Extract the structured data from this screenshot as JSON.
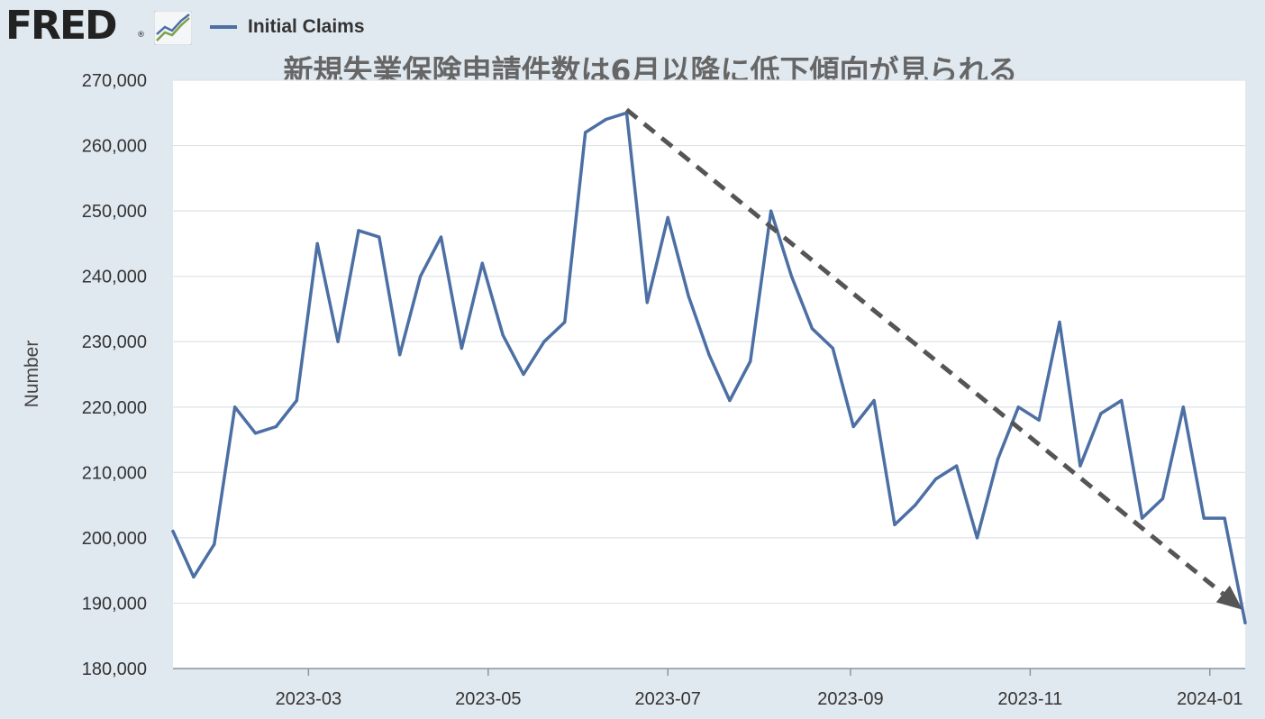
{
  "logo": {
    "text": "FRED",
    "reg": "®",
    "icon": "fred-chart-icon"
  },
  "overlay_title": "新規失業保険申請件数は6月以降に低下傾向が見られる",
  "colors": {
    "series": "#4c6fa4",
    "grid": "#dde3e8",
    "arrow": "#555555",
    "background": "#e1e9f0",
    "plot": "#ffffff"
  },
  "chart_data": {
    "type": "line",
    "title": "",
    "xlabel": "",
    "ylabel": "Number",
    "ylim": [
      180000,
      270000
    ],
    "yticks": [
      180000,
      190000,
      200000,
      210000,
      220000,
      230000,
      240000,
      250000,
      260000,
      270000
    ],
    "ytick_labels": [
      "180,000",
      "190,000",
      "200,000",
      "210,000",
      "220,000",
      "230,000",
      "240,000",
      "250,000",
      "260,000",
      "270,000"
    ],
    "xlim": [
      "2023-01-14",
      "2024-01-13"
    ],
    "xticks": [
      "2023-03-01",
      "2023-05-01",
      "2023-07-01",
      "2023-09-01",
      "2023-11-01",
      "2024-01-01"
    ],
    "xtick_labels": [
      "2023-03",
      "2023-05",
      "2023-07",
      "2023-09",
      "2023-11",
      "2024-01"
    ],
    "grid": true,
    "legend": "top-left",
    "series": [
      {
        "name": "Initial Claims",
        "x": [
          "2023-01-14",
          "2023-01-21",
          "2023-01-28",
          "2023-02-04",
          "2023-02-11",
          "2023-02-18",
          "2023-02-25",
          "2023-03-04",
          "2023-03-11",
          "2023-03-18",
          "2023-03-25",
          "2023-04-01",
          "2023-04-08",
          "2023-04-15",
          "2023-04-22",
          "2023-04-29",
          "2023-05-06",
          "2023-05-13",
          "2023-05-20",
          "2023-05-27",
          "2023-06-03",
          "2023-06-10",
          "2023-06-17",
          "2023-06-24",
          "2023-07-01",
          "2023-07-08",
          "2023-07-15",
          "2023-07-22",
          "2023-07-29",
          "2023-08-05",
          "2023-08-12",
          "2023-08-19",
          "2023-08-26",
          "2023-09-02",
          "2023-09-09",
          "2023-09-16",
          "2023-09-23",
          "2023-09-30",
          "2023-10-07",
          "2023-10-14",
          "2023-10-21",
          "2023-10-28",
          "2023-11-04",
          "2023-11-11",
          "2023-11-18",
          "2023-11-25",
          "2023-12-02",
          "2023-12-09",
          "2023-12-16",
          "2023-12-23",
          "2023-12-30",
          "2024-01-06",
          "2024-01-13"
        ],
        "values": [
          201000,
          194000,
          199000,
          220000,
          216000,
          217000,
          221000,
          245000,
          230000,
          247000,
          246000,
          228000,
          240000,
          246000,
          229000,
          242000,
          231000,
          225000,
          230000,
          233000,
          262000,
          264000,
          265000,
          236000,
          249000,
          237000,
          228000,
          221000,
          227000,
          250000,
          240000,
          232000,
          229000,
          217000,
          221000,
          202000,
          205000,
          209000,
          211000,
          200000,
          212000,
          220000,
          218000,
          233000,
          211000,
          219000,
          221000,
          203000,
          206000,
          220000,
          203000,
          203000,
          187000
        ]
      }
    ],
    "annotations": [
      {
        "type": "dashed-arrow",
        "from": [
          "2023-06-17",
          265500
        ],
        "to": [
          "2024-01-06",
          189000
        ]
      }
    ]
  }
}
